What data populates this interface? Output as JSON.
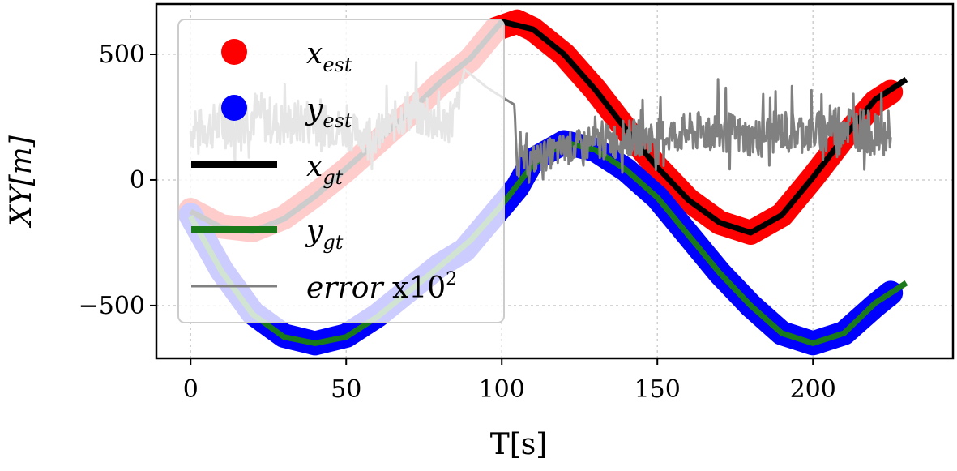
{
  "chart_data": {
    "type": "line",
    "title": "",
    "xlabel": "T[s]",
    "ylabel": "XY[m]",
    "xlim": [
      -11,
      245
    ],
    "ylim": [
      -710,
      700
    ],
    "xticks": [
      0,
      50,
      100,
      150,
      200
    ],
    "yticks": [
      -500,
      0,
      500
    ],
    "xtick_labels": [
      "0",
      "50",
      "100",
      "150",
      "200"
    ],
    "ytick_labels": [
      "−500",
      "0",
      "500"
    ],
    "grid": true,
    "legend_position": "upper-left",
    "series": [
      {
        "name": "x_est",
        "label_main": "x",
        "label_sub": "est",
        "color": "#ff0000",
        "style": "markers",
        "x": [
          0,
          10,
          20,
          30,
          40,
          50,
          60,
          70,
          80,
          90,
          98,
          105,
          110,
          120,
          130,
          140,
          150,
          160,
          170,
          180,
          190,
          200,
          210,
          220,
          225
        ],
        "y": [
          -120,
          -185,
          -200,
          -150,
          -60,
          40,
          150,
          260,
          380,
          480,
          600,
          630,
          600,
          500,
          360,
          200,
          50,
          -80,
          -170,
          -210,
          -140,
          10,
          170,
          310,
          350
        ]
      },
      {
        "name": "y_est",
        "label_main": "y",
        "label_sub": "est",
        "color": "#0000ff",
        "style": "markers",
        "x": [
          0,
          10,
          20,
          30,
          40,
          50,
          60,
          70,
          80,
          88,
          105,
          110,
          120,
          130,
          140,
          150,
          160,
          170,
          180,
          190,
          200,
          210,
          220,
          225
        ],
        "y": [
          -140,
          -360,
          -530,
          -620,
          -650,
          -620,
          -540,
          -440,
          -340,
          -280,
          -30,
          80,
          150,
          120,
          40,
          -70,
          -220,
          -370,
          -500,
          -610,
          -650,
          -610,
          -500,
          -450
        ]
      },
      {
        "name": "x_gt",
        "label_main": "x",
        "label_sub": "gt",
        "color": "#000000",
        "style": "line",
        "x": [
          0,
          10,
          20,
          30,
          40,
          50,
          60,
          70,
          80,
          90,
          100,
          110,
          120,
          130,
          140,
          150,
          160,
          170,
          180,
          190,
          200,
          210,
          220,
          230
        ],
        "y": [
          -125,
          -190,
          -205,
          -155,
          -65,
          45,
          155,
          265,
          385,
          485,
          630,
          600,
          500,
          360,
          200,
          50,
          -80,
          -170,
          -210,
          -140,
          10,
          170,
          320,
          400
        ]
      },
      {
        "name": "y_gt",
        "label_main": "y",
        "label_sub": "gt",
        "color": "#1a7a1a",
        "style": "line",
        "x": [
          0,
          10,
          20,
          30,
          40,
          50,
          60,
          70,
          80,
          90,
          100,
          110,
          120,
          130,
          140,
          150,
          160,
          170,
          180,
          190,
          200,
          210,
          220,
          230
        ],
        "y": [
          -145,
          -365,
          -535,
          -625,
          -650,
          -625,
          -545,
          -445,
          -345,
          -240,
          -100,
          60,
          150,
          120,
          40,
          -70,
          -220,
          -370,
          -500,
          -610,
          -650,
          -610,
          -490,
          -410
        ]
      },
      {
        "name": "error",
        "label_main": "error",
        "label_plain": " x10",
        "label_sup": "2",
        "color": "#808080",
        "style": "noisy-line",
        "x": [
          0,
          10,
          20,
          30,
          40,
          50,
          60,
          70,
          80,
          85,
          88,
          95,
          100,
          104,
          105,
          110,
          120,
          130,
          140,
          150,
          160,
          170,
          180,
          190,
          200,
          210,
          220,
          225
        ],
        "y": [
          180,
          200,
          240,
          200,
          220,
          180,
          160,
          260,
          200,
          230,
          440,
          370,
          330,
          300,
          60,
          70,
          110,
          130,
          150,
          160,
          170,
          180,
          150,
          180,
          170,
          210,
          160,
          170
        ],
        "spread": [
          150,
          200,
          210,
          180,
          200,
          150,
          140,
          180,
          160,
          200,
          0,
          0,
          0,
          0,
          120,
          120,
          130,
          140,
          150,
          140,
          160,
          170,
          150,
          170,
          160,
          190,
          170,
          100
        ]
      }
    ]
  }
}
